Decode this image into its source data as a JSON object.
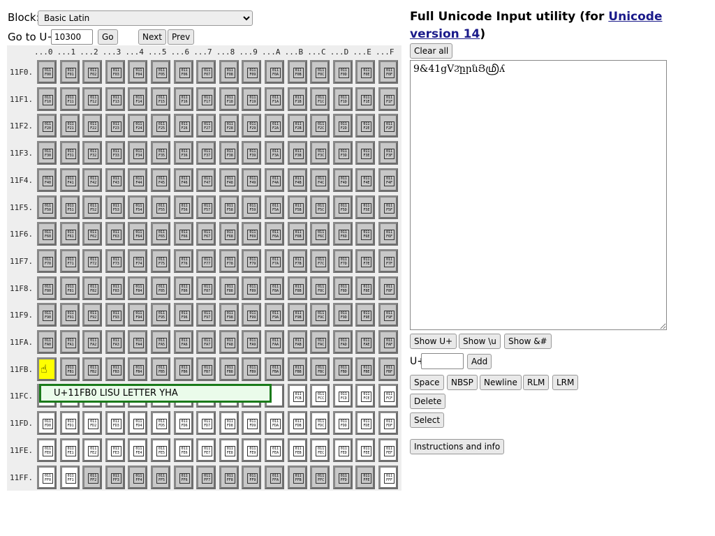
{
  "block": {
    "label": "Block:",
    "selected": "Basic Latin"
  },
  "goto": {
    "label": "Go to U+",
    "value": "10300",
    "go": "Go",
    "next": "Next",
    "prev": "Prev"
  },
  "grid": {
    "columns": [
      "...0",
      "...1",
      "...2",
      "...3",
      "...4",
      "...5",
      "...6",
      "...7",
      "...8",
      "...9",
      "...A",
      "...B",
      "...C",
      "...D",
      "...E",
      "...F"
    ],
    "hex_digits": "0123456789ABCDEF",
    "plane_label": "011",
    "selected": "11FB0",
    "rows": [
      {
        "label": "11F0.",
        "prefix": "F0",
        "states": "gggggggggggggggg"
      },
      {
        "label": "11F1.",
        "prefix": "F1",
        "states": "gggggggggggggggg"
      },
      {
        "label": "11F2.",
        "prefix": "F2",
        "states": "gggggggggggggggg"
      },
      {
        "label": "11F3.",
        "prefix": "F3",
        "states": "gggggggggggggggg"
      },
      {
        "label": "11F4.",
        "prefix": "F4",
        "states": "gggggggggggggggg"
      },
      {
        "label": "11F5.",
        "prefix": "F5",
        "states": "gggggggggggggggg"
      },
      {
        "label": "11F6.",
        "prefix": "F6",
        "states": "gggggggggggggggg"
      },
      {
        "label": "11F7.",
        "prefix": "F7",
        "states": "gggggggggggggggg"
      },
      {
        "label": "11F8.",
        "prefix": "F8",
        "states": "gggggggggggggggg"
      },
      {
        "label": "11F9.",
        "prefix": "F9",
        "states": "gggggggggggggggg"
      },
      {
        "label": "11FA.",
        "prefix": "FA",
        "states": "gggggggggggggggg"
      },
      {
        "label": "11FB.",
        "prefix": "FB",
        "states": "sggggggggggggggg"
      },
      {
        "label": "11FC.",
        "prefix": "FC",
        "states": "wwwwwwwwwwwwwwww"
      },
      {
        "label": "11FD.",
        "prefix": "FD",
        "states": "wwwwwwwwwwwwwwww"
      },
      {
        "label": "11FE.",
        "prefix": "FE",
        "states": "wwwwwwwwwwwwwwww"
      },
      {
        "label": "11FF.",
        "prefix": "FF",
        "states": "wwgggggggggggggw"
      }
    ],
    "tooltip": "U+11FB0 LISU LETTER YHA",
    "colors": {
      "selected": "#ffff00",
      "unassigned": "#c8c8c8",
      "assigned": "#ffffff",
      "tooltip_border": "#1a7a1a"
    }
  },
  "header": {
    "title_prefix": "Full Unicode Input utility (for ",
    "link": "Unicode version 14",
    "title_suffix": ")"
  },
  "editor": {
    "clear_all": "Clear all",
    "text": "9&41gVϨ̇ըրնՅ⁠𑿰ʎ",
    "show_uplus": "Show U+",
    "show_u": "Show \\u",
    "show_amp": "Show &#",
    "uplus_label": "U+",
    "uplus_value": "",
    "add": "Add",
    "space": "Space",
    "nbsp": "NBSP",
    "newline": "Newline",
    "rlm": "RLM",
    "lrm": "LRM",
    "delete": "Delete",
    "select": "Select",
    "instructions": "Instructions and info"
  }
}
